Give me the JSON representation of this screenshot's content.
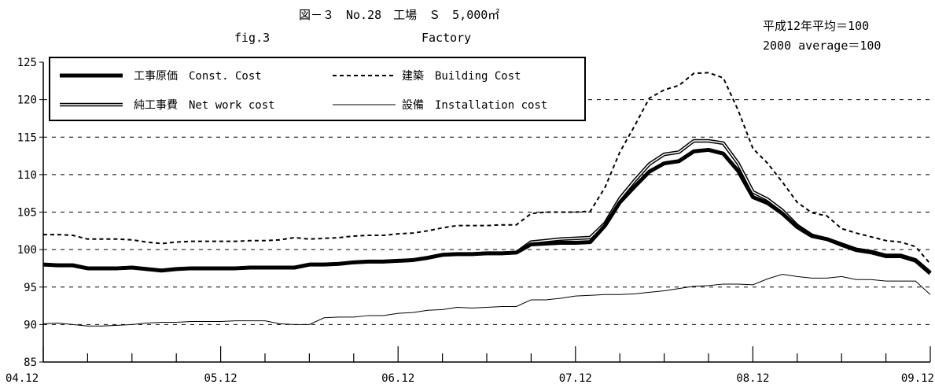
{
  "chart_data": {
    "type": "line",
    "title": "図－３　No.28　工場　Ｓ　5,000㎡",
    "subtitle_left": "fig.3",
    "subtitle_right": "Factory",
    "base_note_ja": "平成12年平均＝100",
    "base_note_en": "2000 average＝100",
    "ylim": [
      85,
      125
    ],
    "y_ticks": [
      "85",
      "90",
      "95",
      "100",
      "105",
      "110",
      "115",
      "120",
      "125"
    ],
    "x_labels": [
      "04.12",
      "05.12",
      "06.12",
      "07.12",
      "08.12",
      "09.12"
    ],
    "grid": "horizontal-dashed",
    "legend_position": "top-left",
    "series": [
      {
        "name": "工事原価　Const. Cost",
        "style": "thick",
        "values": [
          98.0,
          97.9,
          97.9,
          97.5,
          97.5,
          97.5,
          97.6,
          97.4,
          97.2,
          97.4,
          97.5,
          97.5,
          97.5,
          97.5,
          97.6,
          97.6,
          97.6,
          97.6,
          98.0,
          98.0,
          98.1,
          98.3,
          98.4,
          98.4,
          98.5,
          98.6,
          98.9,
          99.3,
          99.4,
          99.4,
          99.5,
          99.5,
          99.6,
          100.7,
          100.8,
          100.9,
          100.9,
          101.0,
          103.2,
          106.3,
          108.4,
          110.4,
          111.5,
          111.8,
          113.1,
          113.3,
          112.8,
          110.5,
          107.0,
          106.2,
          104.8,
          103.0,
          101.8,
          101.4,
          100.7,
          100.0,
          99.7,
          99.2,
          99.2,
          98.6,
          96.9
        ]
      },
      {
        "name": "純工事費　Net work cost",
        "style": "double",
        "values": [
          98.0,
          97.9,
          97.9,
          97.5,
          97.5,
          97.5,
          97.6,
          97.4,
          97.2,
          97.4,
          97.5,
          97.5,
          97.5,
          97.5,
          97.6,
          97.6,
          97.6,
          97.6,
          98.0,
          98.0,
          98.1,
          98.3,
          98.4,
          98.4,
          98.5,
          98.6,
          98.9,
          99.3,
          99.4,
          99.4,
          99.5,
          99.5,
          99.6,
          101.0,
          101.2,
          101.4,
          101.5,
          101.6,
          103.5,
          106.8,
          109.2,
          111.4,
          112.7,
          113.0,
          114.5,
          114.5,
          114.2,
          111.5,
          107.7,
          106.7,
          105.2,
          103.2,
          101.9,
          101.4,
          100.6,
          99.9,
          99.6,
          99.1,
          99.1,
          98.5,
          96.8
        ]
      },
      {
        "name": "建築　Building Cost",
        "style": "dotted",
        "values": [
          102.0,
          102.0,
          101.9,
          101.4,
          101.4,
          101.4,
          101.3,
          101.0,
          100.8,
          101.0,
          101.1,
          101.1,
          101.1,
          101.1,
          101.2,
          101.2,
          101.3,
          101.6,
          101.4,
          101.5,
          101.6,
          101.8,
          101.9,
          101.9,
          102.1,
          102.2,
          102.5,
          102.9,
          103.2,
          103.2,
          103.2,
          103.3,
          103.3,
          104.8,
          105.0,
          105.0,
          105.0,
          105.1,
          108.3,
          113.0,
          116.5,
          120.2,
          121.3,
          121.9,
          123.5,
          123.6,
          122.9,
          118.6,
          113.5,
          111.5,
          109.0,
          106.3,
          104.9,
          104.5,
          102.8,
          102.2,
          101.7,
          101.2,
          101.0,
          100.4,
          98.1
        ]
      },
      {
        "name": "設備　Installation cost",
        "style": "thin",
        "values": [
          90.1,
          90.2,
          90.0,
          89.8,
          89.8,
          89.9,
          90.0,
          90.2,
          90.3,
          90.3,
          90.4,
          90.4,
          90.4,
          90.5,
          90.5,
          90.5,
          90.1,
          90.0,
          90.0,
          90.9,
          91.0,
          91.0,
          91.2,
          91.2,
          91.5,
          91.6,
          91.9,
          92.0,
          92.3,
          92.2,
          92.3,
          92.4,
          92.4,
          93.3,
          93.3,
          93.5,
          93.8,
          93.9,
          94.0,
          94.0,
          94.1,
          94.3,
          94.5,
          94.8,
          95.1,
          95.2,
          95.4,
          95.4,
          95.3,
          96.1,
          96.7,
          96.4,
          96.2,
          96.2,
          96.4,
          96.0,
          96.0,
          95.8,
          95.8,
          95.8,
          94.0
        ]
      }
    ]
  }
}
